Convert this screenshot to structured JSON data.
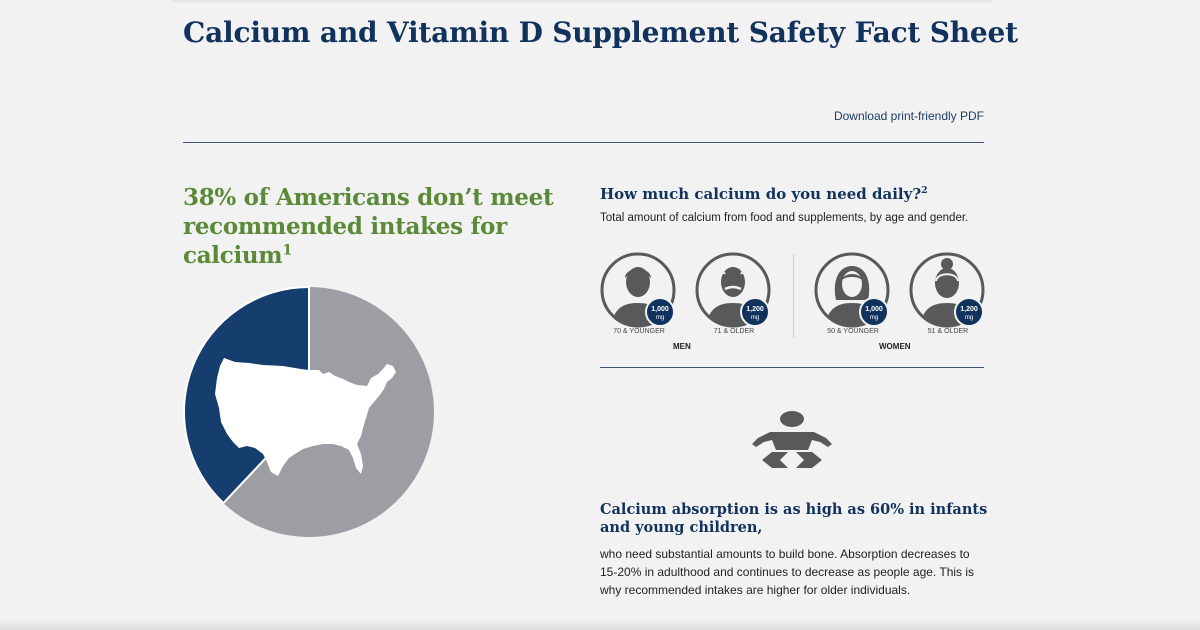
{
  "header": {
    "title": "Calcium and Vitamin D Supplement Safety Fact Sheet",
    "pdf_link": "Download print-friendly PDF"
  },
  "intake": {
    "headline": "38% of Americans don’t meet recommended intakes for calcium",
    "footnote": "1",
    "percent_not_meeting": 38,
    "colors": {
      "not_meeting": "#153d6e",
      "meeting": "#9c9ea3",
      "headline": "#5a8a38"
    }
  },
  "daily": {
    "title": "How much calcium do you need daily?",
    "footnote": "2",
    "subtitle": "Total amount of calcium from food and supplements, by age and gender.",
    "groups": [
      {
        "label": "MEN",
        "people": [
          {
            "amount": "1,000",
            "unit": "mg",
            "age": "70 & YOUNGER",
            "icon": "man-icon"
          },
          {
            "amount": "1,200",
            "unit": "mg",
            "age": "71 & OLDER",
            "icon": "older-man-icon"
          }
        ]
      },
      {
        "label": "WOMEN",
        "people": [
          {
            "amount": "1,000",
            "unit": "mg",
            "age": "50 & YOUNGER",
            "icon": "woman-icon"
          },
          {
            "amount": "1,200",
            "unit": "mg",
            "age": "51 & OLDER",
            "icon": "older-woman-icon"
          }
        ]
      }
    ]
  },
  "absorption": {
    "icon": "infant-icon",
    "title": "Calcium absorption is as high as 60% in infants and young children,",
    "body": "who need substantial amounts to build bone. Absorption decreases to 15-20% in adulthood and continues to decrease as people age. This is why recommended intakes are higher for older individuals."
  },
  "colors": {
    "navy": "#10325c",
    "icon_gray": "#58595b"
  }
}
